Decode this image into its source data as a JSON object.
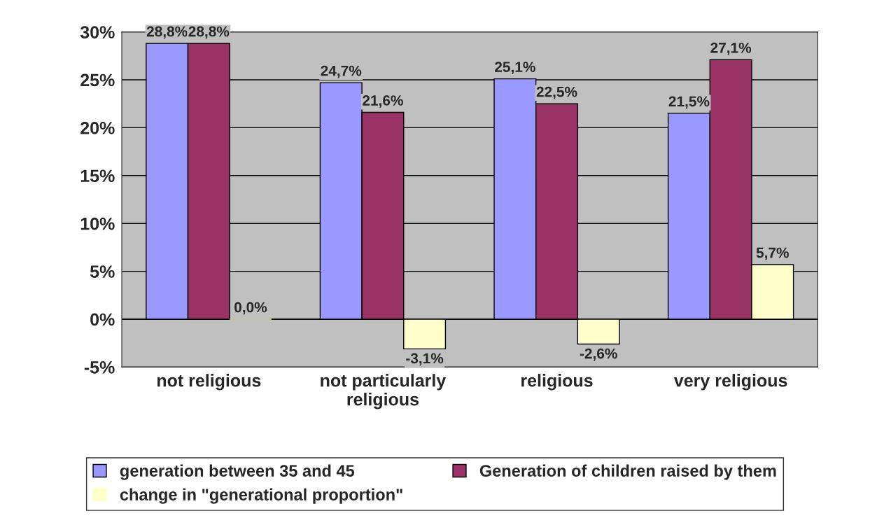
{
  "chart_data": {
    "type": "bar",
    "categories": [
      "not religious",
      "not particularly\nreligious",
      "religious",
      "very religious"
    ],
    "series": [
      {
        "name": "generation between 35 and 45",
        "color": "#9999ff",
        "values": [
          28.8,
          24.7,
          25.1,
          21.5
        ],
        "value_labels": [
          "28,8%",
          "24,7%",
          "25,1%",
          "21,5%"
        ]
      },
      {
        "name": "Generation of children raised by them",
        "color": "#993366",
        "values": [
          28.8,
          21.6,
          22.5,
          27.1
        ],
        "value_labels": [
          "28,8%",
          "21,6%",
          "22,5%",
          "27,1%"
        ]
      },
      {
        "name": "change in \"generational proportion\"",
        "color": "#ffffcc",
        "values": [
          0.0,
          -3.1,
          -2.6,
          5.7
        ],
        "value_labels": [
          "0,0%",
          "-3,1%",
          "-2,6%",
          "5,7%"
        ]
      }
    ],
    "ylim": [
      -5,
      30
    ],
    "yticks": [
      {
        "value": -5,
        "label": "-5%"
      },
      {
        "value": 0,
        "label": "0%"
      },
      {
        "value": 5,
        "label": "5%"
      },
      {
        "value": 10,
        "label": "10%"
      },
      {
        "value": 15,
        "label": "15%"
      },
      {
        "value": 20,
        "label": "20%"
      },
      {
        "value": 25,
        "label": "25%"
      },
      {
        "value": 30,
        "label": "30%"
      }
    ],
    "grid": "y",
    "legend": "bottom"
  }
}
